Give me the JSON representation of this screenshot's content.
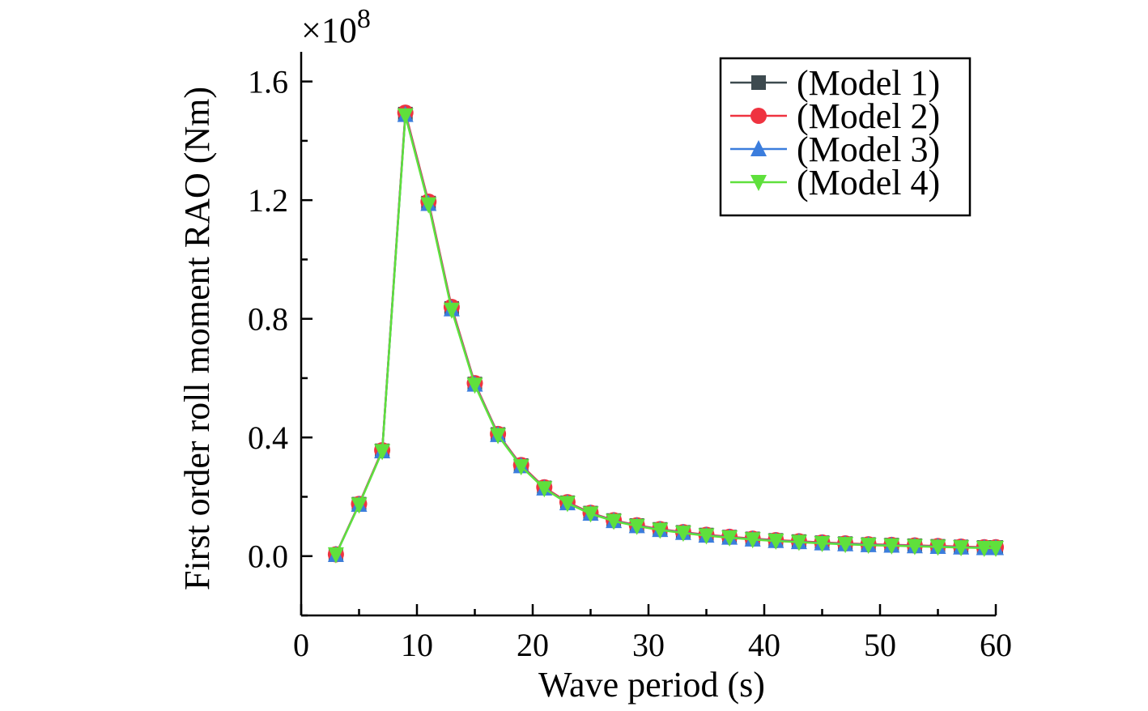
{
  "chart_data": {
    "type": "line",
    "title": "",
    "xlabel": "Wave period (s)",
    "ylabel": "First order roll moment RAO (Nm)",
    "y_multiplier_label": "×10",
    "y_multiplier_exponent": "8",
    "xlim": [
      0,
      60
    ],
    "ylim": [
      -0.2,
      1.7
    ],
    "x_ticks": [
      0,
      10,
      20,
      30,
      40,
      50,
      60
    ],
    "x_tick_labels": [
      "0",
      "10",
      "20",
      "30",
      "40",
      "50",
      "60"
    ],
    "y_ticks": [
      0.0,
      0.4,
      0.8,
      1.2,
      1.6
    ],
    "y_tick_labels": [
      "0.0",
      "0.4",
      "0.8",
      "1.2",
      "1.6"
    ],
    "grid": false,
    "legend_position": "top-right",
    "x": [
      3,
      5,
      7,
      9,
      11,
      13,
      15,
      17,
      19,
      21,
      23,
      25,
      27,
      29,
      31,
      33,
      35,
      37,
      39,
      41,
      43,
      45,
      47,
      49,
      51,
      53,
      55,
      57,
      59,
      60
    ],
    "series": [
      {
        "name": "(Model 1)",
        "color": "#3d4a4f",
        "marker": "square",
        "values": [
          0.005,
          0.175,
          0.355,
          1.49,
          1.19,
          0.835,
          0.58,
          0.41,
          0.305,
          0.23,
          0.18,
          0.145,
          0.12,
          0.103,
          0.09,
          0.08,
          0.071,
          0.064,
          0.058,
          0.053,
          0.049,
          0.045,
          0.042,
          0.039,
          0.037,
          0.035,
          0.033,
          0.031,
          0.029,
          0.029
        ]
      },
      {
        "name": "(Model 2)",
        "color": "#ef3340",
        "marker": "circle",
        "values": [
          0.006,
          0.176,
          0.357,
          1.495,
          1.195,
          0.84,
          0.583,
          0.412,
          0.307,
          0.232,
          0.182,
          0.146,
          0.121,
          0.104,
          0.091,
          0.081,
          0.072,
          0.065,
          0.059,
          0.054,
          0.05,
          0.046,
          0.043,
          0.04,
          0.038,
          0.036,
          0.034,
          0.032,
          0.03,
          0.03
        ]
      },
      {
        "name": "(Model 3)",
        "color": "#3b7ddd",
        "marker": "triangle-up",
        "values": [
          0.005,
          0.174,
          0.354,
          1.488,
          1.188,
          0.833,
          0.579,
          0.409,
          0.304,
          0.229,
          0.179,
          0.144,
          0.119,
          0.102,
          0.089,
          0.079,
          0.07,
          0.063,
          0.057,
          0.052,
          0.048,
          0.044,
          0.041,
          0.038,
          0.036,
          0.034,
          0.032,
          0.03,
          0.028,
          0.028
        ]
      },
      {
        "name": "(Model 4)",
        "color": "#5fe03c",
        "marker": "triangle-down",
        "values": [
          0.005,
          0.173,
          0.353,
          1.485,
          1.185,
          0.83,
          0.577,
          0.407,
          0.302,
          0.228,
          0.178,
          0.143,
          0.118,
          0.101,
          0.088,
          0.078,
          0.069,
          0.062,
          0.056,
          0.051,
          0.047,
          0.043,
          0.04,
          0.037,
          0.035,
          0.033,
          0.031,
          0.029,
          0.027,
          0.027
        ]
      }
    ]
  }
}
